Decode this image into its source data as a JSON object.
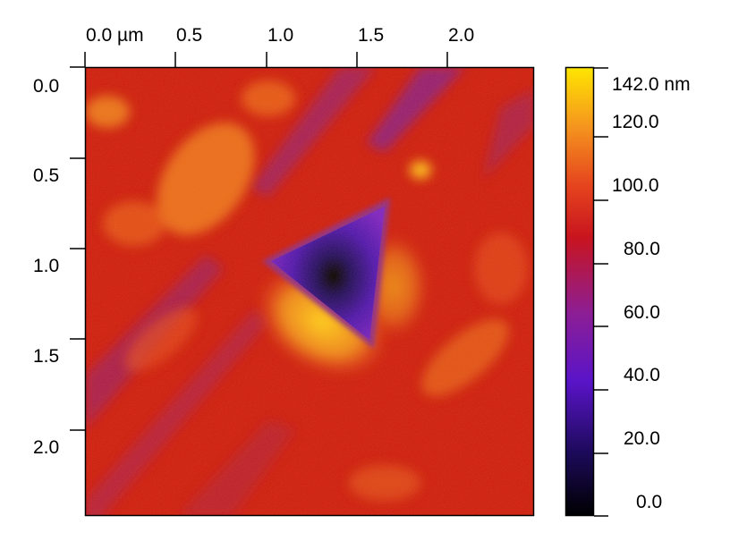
{
  "x_axis": {
    "tick_labels": [
      "0.0 µm",
      "0.5",
      "1.0",
      "1.5",
      "2.0"
    ]
  },
  "y_axis": {
    "tick_labels": [
      "0.0",
      "0.5",
      "1.0",
      "1.5",
      "2.0"
    ]
  },
  "colorbar": {
    "tick_labels": [
      "142.0 nm",
      "120.0",
      "100.0",
      "80.0",
      "60.0",
      "40.0",
      "20.0",
      "0.0"
    ],
    "colormap": [
      "#000000",
      "#1c0a5a",
      "#5a14c8",
      "#8c1e96",
      "#c8141e",
      "#e6461e",
      "#f5961e",
      "#ffe600"
    ]
  },
  "image": {
    "description_colors": {
      "background": "#cc1a10",
      "highlight": "#f0a020",
      "indent": "#3a0aa0"
    }
  }
}
